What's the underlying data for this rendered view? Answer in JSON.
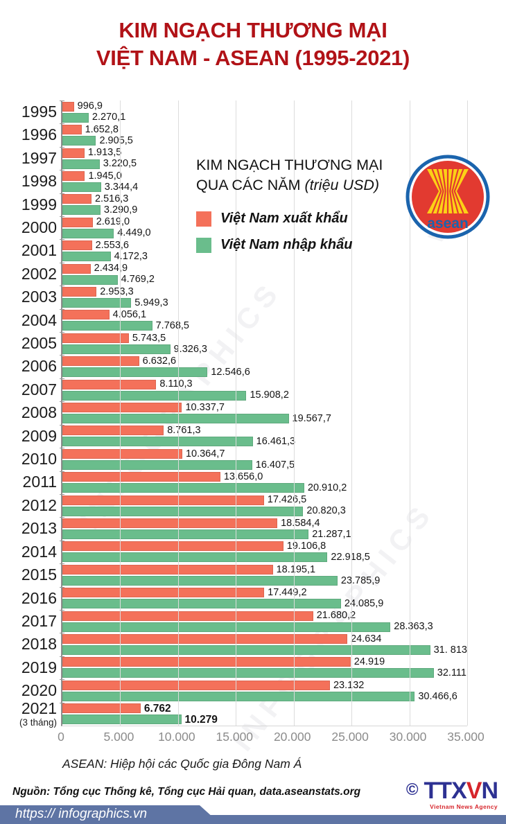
{
  "title": {
    "line1": "KIM NGẠCH THƯƠNG MẠI",
    "line2": "VIỆT NAM - ASEAN (1995-2021)"
  },
  "legend": {
    "heading_line1": "KIM NGẠCH THƯƠNG MẠI",
    "heading_line2": "QUA CÁC NĂM ",
    "heading_unit": "(triệu USD)"
  },
  "asean_logo": {
    "text": "asean"
  },
  "chart_data": {
    "type": "bar",
    "orientation": "horizontal",
    "title": "KIM NGẠCH THƯƠNG MẠI QUA CÁC NĂM (triệu USD)",
    "unit": "triệu USD",
    "xlim": [
      0,
      35000
    ],
    "grid": true,
    "xticks": [
      {
        "v": 0,
        "label": "0"
      },
      {
        "v": 5000,
        "label": "5.000"
      },
      {
        "v": 10000,
        "label": "10.000"
      },
      {
        "v": 15000,
        "label": "15.000"
      },
      {
        "v": 20000,
        "label": "20.000"
      },
      {
        "v": 25000,
        "label": "25.000"
      },
      {
        "v": 30000,
        "label": "30.000"
      },
      {
        "v": 35000,
        "label": "35.000"
      }
    ],
    "categories": [
      {
        "label": "1995"
      },
      {
        "label": "1996"
      },
      {
        "label": "1997"
      },
      {
        "label": "1998"
      },
      {
        "label": "1999"
      },
      {
        "label": "2000"
      },
      {
        "label": "2001"
      },
      {
        "label": "2002"
      },
      {
        "label": "2003"
      },
      {
        "label": "2004"
      },
      {
        "label": "2005"
      },
      {
        "label": "2006"
      },
      {
        "label": "2007"
      },
      {
        "label": "2008"
      },
      {
        "label": "2009"
      },
      {
        "label": "2010"
      },
      {
        "label": "2011"
      },
      {
        "label": "2012"
      },
      {
        "label": "2013"
      },
      {
        "label": "2014"
      },
      {
        "label": "2015"
      },
      {
        "label": "2016"
      },
      {
        "label": "2017"
      },
      {
        "label": "2018"
      },
      {
        "label": "2019"
      },
      {
        "label": "2020"
      },
      {
        "label": "2021",
        "note": "(3 tháng)",
        "bold": true
      }
    ],
    "series": [
      {
        "name": "Việt Nam xuất khẩu",
        "color": "#f4715a",
        "values": [
          996.9,
          1652.8,
          1913.5,
          1945.0,
          2516.3,
          2619.0,
          2553.6,
          2434.9,
          2953.3,
          4056.1,
          5743.5,
          6632.6,
          8110.3,
          10337.7,
          8761.3,
          10364.7,
          13656.0,
          17426.5,
          18584.4,
          19106.8,
          18195.1,
          17449.2,
          21680.2,
          24634,
          24919,
          23132,
          6762
        ],
        "labels": [
          "996,9",
          "1.652,8",
          "1.913,5",
          "1.945,0",
          "2.516,3",
          "2.619,0",
          "2.553,6",
          "2.434,9",
          "2.953,3",
          "4.056,1",
          "5.743,5",
          "6.632,6",
          "8.110,3",
          "10.337,7",
          "8.761,3",
          "10.364,7",
          "13.656,0",
          "17.426,5",
          "18.584,4",
          "19.106,8",
          "18.195,1",
          "17.449,2",
          "21.680,2",
          "24.634",
          "24.919",
          "23.132",
          "6.762"
        ]
      },
      {
        "name": "Việt Nam nhập khẩu",
        "color": "#6abd8c",
        "values": [
          2270.1,
          2905.5,
          3220.5,
          3344.4,
          3290.9,
          4449.0,
          4172.3,
          4769.2,
          5949.3,
          7768.5,
          9326.3,
          12546.6,
          15908.2,
          19567.7,
          16461.3,
          16407.5,
          20910.2,
          20820.3,
          21287.1,
          22918.5,
          23785.9,
          24085.9,
          28363.3,
          31813,
          32111,
          30466.6,
          10279
        ],
        "labels": [
          "2.270,1",
          "2.905,5",
          "3.220,5",
          "3.344,4",
          "3.290,9",
          "4.449,0",
          "4.172,3",
          "4.769,2",
          "5.949,3",
          "7.768,5",
          "9.326,3",
          "12.546,6",
          "15.908,2",
          "19.567,7",
          "16.461,3",
          "16.407,5",
          "20.910,2",
          "20.820,3",
          "21.287,1",
          "22.918,5",
          "23.785,9",
          "24.085,9",
          "28.363,3",
          "31. 813",
          "32.111",
          "30.466,6",
          "10.279"
        ]
      }
    ]
  },
  "notes": {
    "asean_note": "ASEAN: Hiệp hội các Quốc gia Đông Nam Á"
  },
  "footer": {
    "source": "Nguồn: Tổng cục Thống kê, Tổng cục Hải quan, data.aseanstats.org",
    "url": "https:// infographics.vn",
    "copyright": "©",
    "agency_parts": [
      "TTX",
      "V",
      "N"
    ],
    "agency_sub": "Vietnam News Agency"
  },
  "watermarks": [
    "INFOGRAPHICS",
    "INFOGRAPHICS",
    "VNA"
  ],
  "colors": {
    "title_red": "#b11217",
    "export_orange": "#f4715a",
    "import_green": "#6abd8c",
    "asean_ring_blue": "#1b64ad",
    "asean_disc_red": "#e23a30",
    "asean_yellow": "#fcd116",
    "banner_blue": "#5e74a4",
    "ttxvn_blue": "#2d3192",
    "ttxvn_red": "#d6252b"
  }
}
